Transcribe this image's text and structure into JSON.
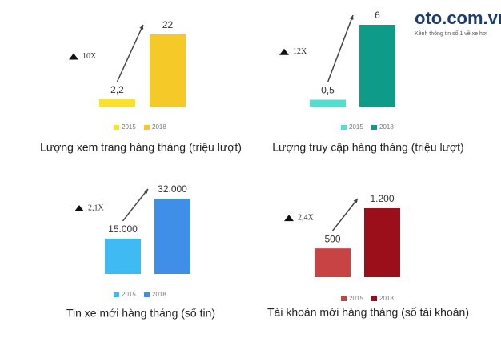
{
  "logo": {
    "name": "oto.com.vn",
    "tagline": "Kênh thông tin số 1 về xe hơi"
  },
  "chart_data": [
    {
      "type": "bar",
      "title": "Lượng xem trang hàng tháng (triệu lượt)",
      "categories": [
        "2015",
        "2018"
      ],
      "values": [
        2.2,
        22
      ],
      "value_labels": [
        "2,2",
        "22"
      ],
      "colors": [
        "#fbe22a",
        "#f5c928"
      ],
      "annotation": "10X"
    },
    {
      "type": "bar",
      "title": "Lượng truy cập hàng tháng (triệu lượt)",
      "categories": [
        "2015",
        "2018"
      ],
      "values": [
        0.5,
        6
      ],
      "value_labels": [
        "0,5",
        "6"
      ],
      "colors": [
        "#4fe0cf",
        "#0e9b87"
      ],
      "annotation": "12X"
    },
    {
      "type": "bar",
      "title": "Tin xe mới hàng tháng (số tin)",
      "categories": [
        "2015",
        "2018"
      ],
      "values": [
        15000,
        32000
      ],
      "value_labels": [
        "15.000",
        "32.000"
      ],
      "colors": [
        "#3fbaf3",
        "#3f8ee8"
      ],
      "annotation": "2,1X"
    },
    {
      "type": "bar",
      "title": "Tài khoản mới hàng tháng (số tài khoản)",
      "categories": [
        "2015",
        "2018"
      ],
      "values": [
        500,
        1200
      ],
      "value_labels": [
        "500",
        "1.200"
      ],
      "colors": [
        "#c84444",
        "#9b0f1a"
      ],
      "annotation": "2,4X"
    }
  ]
}
